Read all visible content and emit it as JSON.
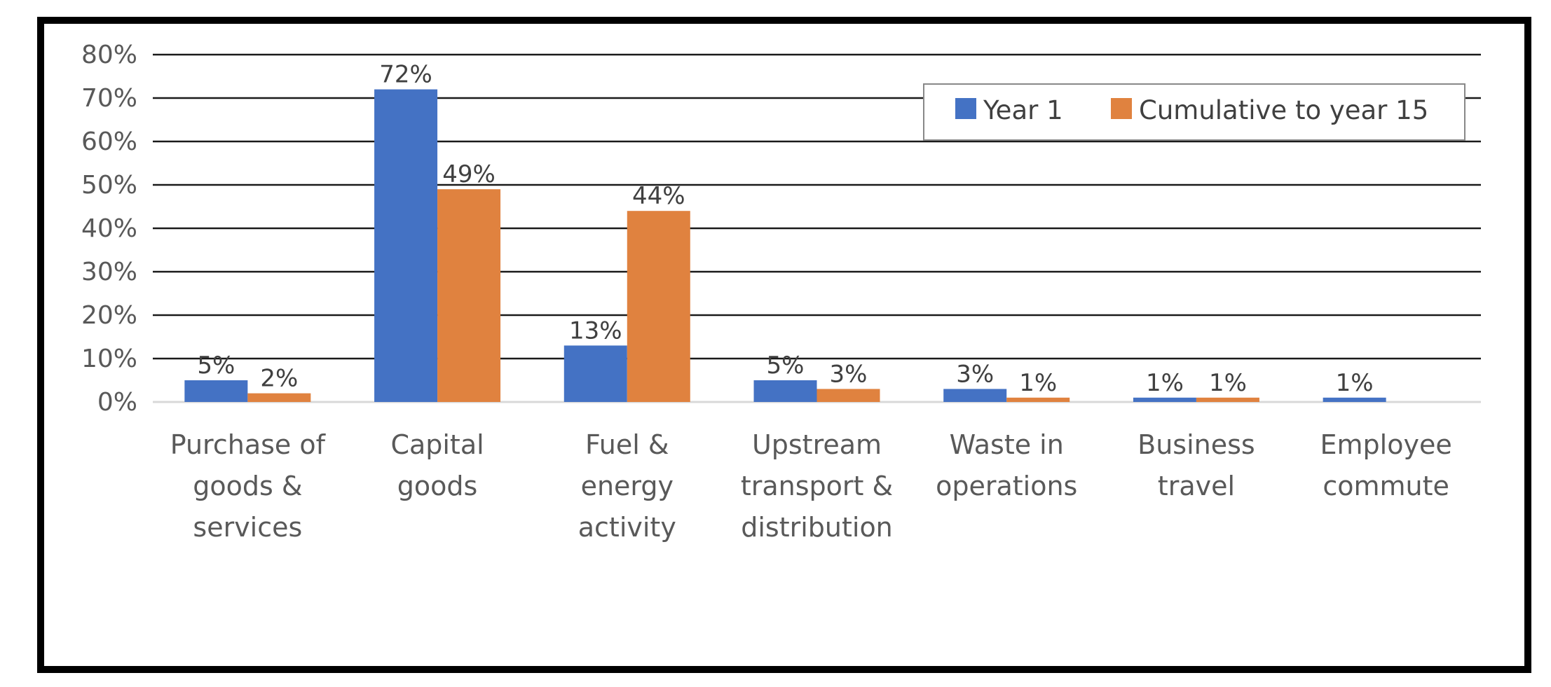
{
  "chart_data": {
    "type": "bar",
    "title": "",
    "xlabel": "",
    "ylabel": "",
    "ylim": [
      0,
      80
    ],
    "yticks": [
      0,
      10,
      20,
      30,
      40,
      50,
      60,
      70,
      80
    ],
    "ytick_labels": [
      "0%",
      "10%",
      "20%",
      "30%",
      "40%",
      "50%",
      "60%",
      "70%",
      "80%"
    ],
    "grid": true,
    "legend_position": "top-right",
    "categories": [
      [
        "Purchase of",
        "goods &",
        "services"
      ],
      [
        "Capital",
        "goods"
      ],
      [
        "Fuel &",
        "energy",
        "activity"
      ],
      [
        "Upstream",
        "transport &",
        "distribution"
      ],
      [
        "Waste in",
        "operations"
      ],
      [
        "Business",
        "travel"
      ],
      [
        "Employee",
        "commute"
      ]
    ],
    "series": [
      {
        "name": "Year 1",
        "color": "#4472C4",
        "values": [
          5,
          72,
          13,
          5,
          3,
          1,
          1
        ],
        "labels": [
          "5%",
          "72%",
          "13%",
          "5%",
          "3%",
          "1%",
          "1%"
        ]
      },
      {
        "name": "Cumulative to year 15",
        "color": "#E0823F",
        "values": [
          2,
          49,
          44,
          3,
          1,
          1,
          null
        ],
        "labels": [
          "2%",
          "49%",
          "44%",
          "3%",
          "1%",
          "1%",
          null
        ]
      }
    ]
  }
}
